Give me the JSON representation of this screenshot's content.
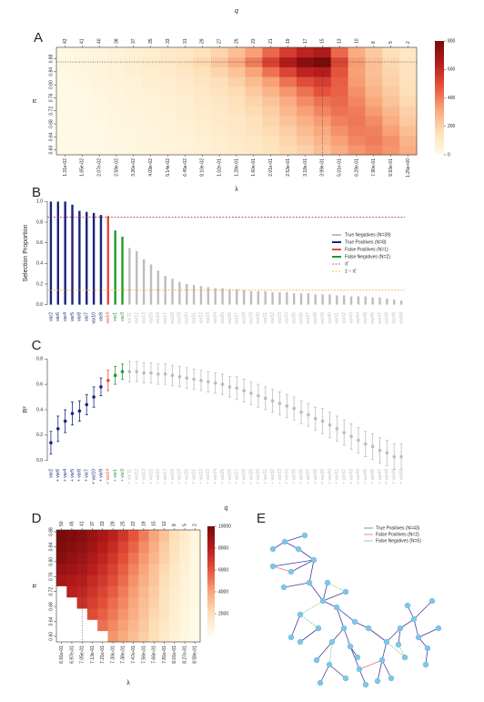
{
  "chart_data": [
    {
      "type": "heatmap",
      "label": "A",
      "x2label": "q",
      "xlabel": "λ",
      "ylabel": "π",
      "categories": [
        "1.31e-02",
        "1.65e-02",
        "2.07e-02",
        "2.59e-02",
        "3.26e-02",
        "4.09e-02",
        "5.14e-02",
        "6.45e-02",
        "8.10e-02",
        "1.02e-01",
        "1.28e-01",
        "1.60e-01",
        "2.01e-01",
        "2.53e-01",
        "3.18e-01",
        "3.99e-01",
        "5.01e-01",
        "6.29e-01",
        "7.90e-01",
        "9.93e-01",
        "1.25e+00"
      ],
      "top_categories": [
        43,
        41,
        40,
        38,
        37,
        35,
        33,
        31,
        29,
        27,
        25,
        23,
        21,
        19,
        17,
        15,
        13,
        10,
        8,
        5,
        2
      ],
      "y": [
        0.6,
        0.63,
        0.66,
        0.69,
        0.72,
        0.75,
        0.78,
        0.81,
        0.84,
        0.87,
        0.9
      ],
      "ylim": [
        0.585,
        0.915
      ],
      "yticks": [
        {
          "value": 0.6,
          "label": "0.60"
        },
        0.64,
        0.68,
        0.72,
        0.76,
        {
          "value": 0.8,
          "label": "0.80"
        },
        0.84,
        0.88
      ],
      "values": [
        [
          10,
          15,
          20,
          25,
          30,
          35,
          40,
          50,
          60,
          70,
          90,
          110,
          140,
          170,
          200,
          250,
          300,
          350,
          380,
          350,
          300
        ],
        [
          10,
          15,
          20,
          25,
          30,
          35,
          45,
          55,
          65,
          80,
          100,
          120,
          150,
          190,
          230,
          280,
          330,
          380,
          400,
          360,
          280
        ],
        [
          10,
          15,
          20,
          25,
          30,
          40,
          50,
          60,
          70,
          90,
          110,
          140,
          170,
          210,
          260,
          310,
          360,
          400,
          390,
          330,
          250
        ],
        [
          10,
          15,
          20,
          30,
          35,
          45,
          55,
          65,
          80,
          100,
          120,
          150,
          190,
          240,
          290,
          340,
          390,
          410,
          370,
          300,
          220
        ],
        [
          10,
          20,
          25,
          30,
          40,
          50,
          60,
          70,
          90,
          110,
          140,
          170,
          210,
          270,
          330,
          380,
          420,
          400,
          340,
          270,
          200
        ],
        [
          15,
          20,
          25,
          35,
          45,
          55,
          65,
          80,
          100,
          120,
          150,
          190,
          240,
          300,
          370,
          420,
          440,
          380,
          310,
          240,
          180
        ],
        [
          15,
          20,
          30,
          40,
          50,
          60,
          75,
          90,
          110,
          140,
          170,
          220,
          280,
          350,
          420,
          480,
          450,
          360,
          280,
          220,
          160
        ],
        [
          20,
          25,
          35,
          45,
          55,
          70,
          85,
          100,
          130,
          160,
          200,
          260,
          330,
          420,
          500,
          540,
          460,
          340,
          260,
          200,
          150
        ],
        [
          20,
          30,
          40,
          50,
          65,
          80,
          100,
          120,
          150,
          190,
          240,
          320,
          420,
          520,
          620,
          640,
          480,
          330,
          250,
          190,
          140
        ],
        [
          25,
          35,
          45,
          60,
          75,
          95,
          115,
          140,
          180,
          230,
          300,
          400,
          530,
          650,
          760,
          800,
          520,
          340,
          250,
          180,
          130
        ],
        [
          20,
          30,
          40,
          50,
          65,
          80,
          100,
          120,
          150,
          190,
          250,
          330,
          440,
          540,
          620,
          660,
          440,
          300,
          220,
          160,
          120
        ]
      ],
      "clim": [
        0,
        800
      ],
      "cticks": [
        0,
        200,
        400,
        600,
        800
      ],
      "colormap": [
        "#fffbe8",
        "#fde0b8",
        "#f9a57a",
        "#e5533c",
        "#b71c1c",
        "#7a0a0a"
      ],
      "hline": 0.87,
      "vline": "3.99e-01"
    },
    {
      "type": "bar",
      "label": "B",
      "ylabel": "Selection Proportion",
      "categories": [
        "var2",
        "var6",
        "var4",
        "var5",
        "var8",
        "var7",
        "var10",
        "var9",
        "var14",
        "var1",
        "var3",
        "var11",
        "var12",
        "var13",
        "var15",
        "var16",
        "var17",
        "var18",
        "var19",
        "var20",
        "var21",
        "var22",
        "var23",
        "var24",
        "var25",
        "var26",
        "var27",
        "var28",
        "var29",
        "var30",
        "var31",
        "var32",
        "var33",
        "var34",
        "var35",
        "var36",
        "var37",
        "var38",
        "var39",
        "var40",
        "var41",
        "var42",
        "var43",
        "var44",
        "var45",
        "var46",
        "var47",
        "var48",
        "var49",
        "var50"
      ],
      "values": [
        1.0,
        1.0,
        1.0,
        0.97,
        0.91,
        0.9,
        0.89,
        0.87,
        0.86,
        0.72,
        0.66,
        0.55,
        0.52,
        0.44,
        0.39,
        0.33,
        0.28,
        0.25,
        0.22,
        0.2,
        0.19,
        0.18,
        0.17,
        0.16,
        0.16,
        0.15,
        0.15,
        0.14,
        0.13,
        0.13,
        0.13,
        0.12,
        0.12,
        0.12,
        0.11,
        0.11,
        0.11,
        0.1,
        0.1,
        0.1,
        0.09,
        0.09,
        0.08,
        0.08,
        0.08,
        0.07,
        0.07,
        0.06,
        0.05,
        0.04
      ],
      "colors": [
        "#1a237e",
        "#1a237e",
        "#1a237e",
        "#1a237e",
        "#1a237e",
        "#1a237e",
        "#1a237e",
        "#1a237e",
        "#e8483b",
        "#1f9a2f",
        "#1f9a2f",
        "#bdbdbd",
        "#bdbdbd",
        "#bdbdbd",
        "#bdbdbd",
        "#bdbdbd",
        "#bdbdbd",
        "#bdbdbd",
        "#bdbdbd",
        "#bdbdbd",
        "#bdbdbd",
        "#bdbdbd",
        "#bdbdbd",
        "#bdbdbd",
        "#bdbdbd",
        "#bdbdbd",
        "#bdbdbd",
        "#bdbdbd",
        "#bdbdbd",
        "#bdbdbd",
        "#bdbdbd",
        "#bdbdbd",
        "#bdbdbd",
        "#bdbdbd",
        "#bdbdbd",
        "#bdbdbd",
        "#bdbdbd",
        "#bdbdbd",
        "#bdbdbd",
        "#bdbdbd",
        "#bdbdbd",
        "#bdbdbd",
        "#bdbdbd",
        "#bdbdbd",
        "#bdbdbd",
        "#bdbdbd",
        "#bdbdbd",
        "#bdbdbd",
        "#bdbdbd",
        "#bdbdbd"
      ],
      "ylim": [
        -0.03,
        1.03
      ],
      "yticks": [
        {
          "value": 0,
          "label": "0.0"
        },
        0.2,
        0.4,
        0.6,
        0.8,
        {
          "value": 1,
          "label": "1.0"
        }
      ],
      "groups": [
        {
          "name": "True Negatives (N=39)",
          "color": "#bdbdbd"
        },
        {
          "name": "True Positives (N=8)",
          "color": "#1a237e"
        },
        {
          "name": "False Positives (N=1)",
          "color": "#e8483b"
        },
        {
          "name": "False Negatives (N=2)",
          "color": "#1f9a2f"
        }
      ],
      "hlines": [
        {
          "name": "π̂",
          "value": 0.85,
          "color": "#a33030"
        },
        {
          "name": "1 − π̂",
          "value": 0.14,
          "color": "#f5a623"
        }
      ]
    },
    {
      "type": "errorbar",
      "label": "C",
      "ylabel": "R²",
      "xlabel": "q",
      "categories": [
        "var2",
        "+ var6",
        "+ var4",
        "+ var5",
        "+ var8",
        "+ var7",
        "+ var10",
        "+ var9",
        "+ var14",
        "+ var1",
        "+ var3",
        "+ var11",
        "+ var12",
        "+ var13",
        "+ var15",
        "+ var16",
        "+ var17",
        "+ var18",
        "+ var19",
        "+ var20",
        "+ var21",
        "+ var22",
        "+ var23",
        "+ var24",
        "+ var25",
        "+ var26",
        "+ var27",
        "+ var28",
        "+ var29",
        "+ var30",
        "+ var31",
        "+ var32",
        "+ var33",
        "+ var34",
        "+ var35",
        "+ var36",
        "+ var37",
        "+ var38",
        "+ var39",
        "+ var40",
        "+ var41",
        "+ var42",
        "+ var43",
        "+ var44",
        "+ var45",
        "+ var46",
        "+ var47",
        "+ var48",
        "+ var49",
        "+ var50"
      ],
      "values": [
        0.14,
        0.25,
        0.31,
        0.37,
        0.39,
        0.44,
        0.5,
        0.58,
        0.63,
        0.67,
        0.7,
        0.7,
        0.7,
        0.69,
        0.69,
        0.68,
        0.68,
        0.67,
        0.66,
        0.65,
        0.64,
        0.63,
        0.62,
        0.61,
        0.6,
        0.58,
        0.57,
        0.55,
        0.53,
        0.51,
        0.49,
        0.47,
        0.45,
        0.43,
        0.41,
        0.38,
        0.36,
        0.33,
        0.31,
        0.28,
        0.25,
        0.22,
        0.19,
        0.16,
        0.13,
        0.11,
        0.08,
        0.06,
        0.03,
        0.03
      ],
      "errors": [
        0.09,
        0.1,
        0.09,
        0.09,
        0.08,
        0.08,
        0.08,
        0.07,
        0.08,
        0.07,
        0.06,
        0.08,
        0.08,
        0.08,
        0.08,
        0.08,
        0.08,
        0.08,
        0.08,
        0.08,
        0.08,
        0.08,
        0.08,
        0.08,
        0.08,
        0.08,
        0.09,
        0.09,
        0.09,
        0.09,
        0.09,
        0.09,
        0.09,
        0.09,
        0.09,
        0.09,
        0.09,
        0.09,
        0.1,
        0.1,
        0.1,
        0.1,
        0.1,
        0.1,
        0.1,
        0.1,
        0.1,
        0.1,
        0.1,
        0.1
      ],
      "colors": [
        "#1a237e",
        "#1a237e",
        "#1a237e",
        "#1a237e",
        "#1a237e",
        "#1a237e",
        "#1a237e",
        "#1a237e",
        "#e8483b",
        "#1f9a2f",
        "#1f9a2f",
        "#bdbdbd",
        "#bdbdbd",
        "#bdbdbd",
        "#bdbdbd",
        "#bdbdbd",
        "#bdbdbd",
        "#bdbdbd",
        "#bdbdbd",
        "#bdbdbd",
        "#bdbdbd",
        "#bdbdbd",
        "#bdbdbd",
        "#bdbdbd",
        "#bdbdbd",
        "#bdbdbd",
        "#bdbdbd",
        "#bdbdbd",
        "#bdbdbd",
        "#bdbdbd",
        "#bdbdbd",
        "#bdbdbd",
        "#bdbdbd",
        "#bdbdbd",
        "#bdbdbd",
        "#bdbdbd",
        "#bdbdbd",
        "#bdbdbd",
        "#bdbdbd",
        "#bdbdbd",
        "#bdbdbd",
        "#bdbdbd",
        "#bdbdbd",
        "#bdbdbd",
        "#bdbdbd",
        "#bdbdbd",
        "#bdbdbd",
        "#bdbdbd",
        "#bdbdbd",
        "#bdbdbd"
      ],
      "ylim": [
        -0.03,
        0.83
      ],
      "yticks": [
        {
          "value": 0,
          "label": "0.0"
        },
        0.2,
        0.4,
        0.6,
        0.8
      ]
    },
    {
      "type": "heatmap",
      "label": "D",
      "xlabel": "λ",
      "ylabel": "π",
      "categories": [
        "6.91e-01",
        "6.97e-01",
        "7.05e-01",
        "7.13e-01",
        "7.21e-01",
        "7.30e-01",
        "7.38e-01",
        "7.47e-01",
        "7.56e-01",
        "7.66e-01",
        "7.81e-01",
        "8.01e-01",
        "8.27e-01",
        "8.59e-01"
      ],
      "top_categories": [
        50,
        45,
        41,
        37,
        33,
        29,
        25,
        22,
        19,
        15,
        12,
        8,
        5,
        2
      ],
      "y": [
        0.6,
        0.63,
        0.66,
        0.69,
        0.72,
        0.75,
        0.78,
        0.81,
        0.84,
        0.87
      ],
      "ylim": [
        0.585,
        0.885
      ],
      "yticks": [
        {
          "value": 0.6,
          "label": "0.60"
        },
        0.64,
        0.68,
        0.72,
        0.76,
        {
          "value": 0.8,
          "label": "0.80"
        },
        0.84,
        0.88
      ],
      "values": [
        [
          null,
          null,
          null,
          null,
          null,
          4400,
          3800,
          3200,
          2600,
          2000,
          1300,
          700,
          300,
          100
        ],
        [
          null,
          null,
          null,
          null,
          5300,
          4700,
          4100,
          3400,
          2800,
          2100,
          1400,
          800,
          400,
          100
        ],
        [
          null,
          null,
          null,
          6300,
          5700,
          5100,
          4400,
          3700,
          3000,
          2300,
          1600,
          900,
          500,
          100
        ],
        [
          null,
          null,
          7200,
          6700,
          6100,
          5400,
          4700,
          3900,
          3200,
          2500,
          1700,
          1000,
          500,
          200
        ],
        [
          null,
          7900,
          7600,
          7100,
          6500,
          5800,
          5000,
          4200,
          3400,
          2700,
          1800,
          1100,
          600,
          200
        ],
        [
          8500,
          8300,
          8000,
          7500,
          6900,
          6200,
          5400,
          4500,
          3700,
          2900,
          2000,
          1300,
          700,
          200
        ],
        [
          9000,
          8800,
          8400,
          7900,
          7300,
          6600,
          5700,
          4800,
          4000,
          3100,
          2200,
          1400,
          800,
          300
        ],
        [
          9500,
          9200,
          8800,
          8300,
          7700,
          7000,
          6100,
          5200,
          4300,
          3400,
          2500,
          1600,
          900,
          300
        ],
        [
          9800,
          9500,
          9200,
          8700,
          8100,
          7400,
          6500,
          5600,
          4600,
          3700,
          2700,
          1800,
          1000,
          400
        ],
        [
          10000,
          9800,
          9500,
          9000,
          8500,
          7800,
          7000,
          6000,
          5000,
          4000,
          3000,
          2000,
          1200,
          500
        ]
      ],
      "clim": [
        0,
        10000
      ],
      "cticks": [
        2000,
        4000,
        6000,
        8000,
        10000
      ],
      "colormap": [
        "#fffbe8",
        "#fde0b8",
        "#f9a57a",
        "#e5533c",
        "#b71c1c",
        "#7a0a0a"
      ],
      "vline": "7.05e-01"
    },
    {
      "type": "network",
      "label": "E",
      "legend": [
        {
          "name": "True Positives (N=43)",
          "color": "#5c6bc0"
        },
        {
          "name": "False Positives (N=2)",
          "color": "#e57373"
        },
        {
          "name": "False Negatives (N=6)",
          "color": "#81c784"
        }
      ]
    }
  ]
}
